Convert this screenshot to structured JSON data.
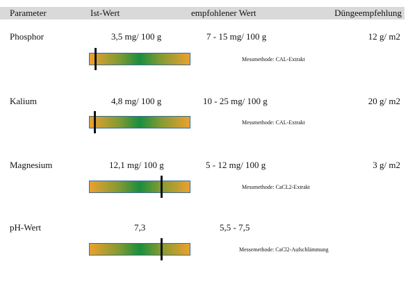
{
  "header": {
    "columns": [
      "Parameter",
      "Ist-Wert",
      "empfohlener Wert",
      "Düngeempfehlung"
    ]
  },
  "rows": [
    {
      "parameter": "Phosphor",
      "ist_wert": "3,5 mg/ 100 g",
      "empfohlen": "7 - 15 mg/ 100 g",
      "duengeempfehlung": "12 g/ m2",
      "messmethode": "Messmethode:  CAL-Extrakt"
    },
    {
      "parameter": "Kalium",
      "ist_wert": "4,8 mg/ 100 g",
      "empfohlen": "10 - 25 mg/ 100 g",
      "duengeempfehlung": "20 g/ m2",
      "messmethode": "Messmethode:  CAL-Extrakt"
    },
    {
      "parameter": "Magnesium",
      "ist_wert": "12,1 mg/ 100 g",
      "empfohlen": "5 - 12 mg/ 100 g",
      "duengeempfehlung": "3 g/ m2",
      "messmethode": "Messmethode:  CaCL2-Extrakt"
    },
    {
      "parameter": "pH-Wert",
      "ist_wert": "7,3",
      "empfohlen": "5,5 - 7,5",
      "messmethode": "Messemethode:  CaCl2-Aufschlämmung"
    }
  ]
}
